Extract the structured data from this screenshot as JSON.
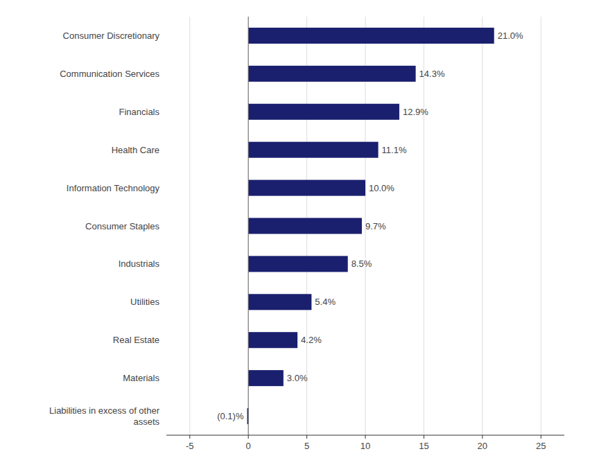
{
  "chart_data": {
    "type": "bar",
    "orientation": "horizontal",
    "categories": [
      "Consumer Discretionary",
      "Communication Services",
      "Financials",
      "Health Care",
      "Information Technology",
      "Consumer Staples",
      "Industrials",
      "Utilities",
      "Real Estate",
      "Materials",
      "Liabilities in excess of other\nassets"
    ],
    "values": [
      21.0,
      14.3,
      12.9,
      11.1,
      10.0,
      9.7,
      8.5,
      5.4,
      4.2,
      3.0,
      -0.1
    ],
    "value_labels": [
      "21.0%",
      "14.3%",
      "12.9%",
      "11.1%",
      "10.0%",
      "9.7%",
      "8.5%",
      "5.4%",
      "4.2%",
      "3.0%",
      "(0.1)%"
    ],
    "data_labels": true,
    "color": "#1a1f6e",
    "xlim": [
      -7,
      27
    ],
    "xticks": [
      -5,
      0,
      5,
      10,
      15,
      20,
      25
    ],
    "grid": true
  }
}
